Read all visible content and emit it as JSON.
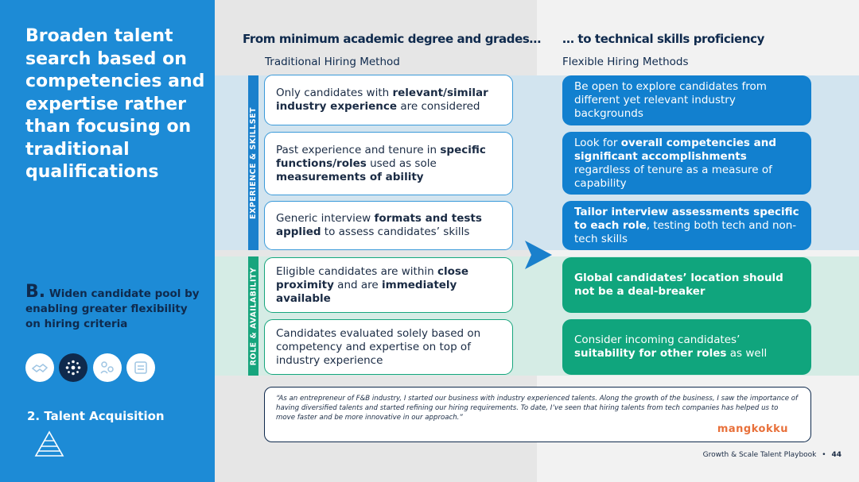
{
  "sidebar": {
    "title": "Broaden talent search based on competencies and expertise rather than focusing on traditional qualifications",
    "sub_letter": "B.",
    "sub_text": "Widen candidate pool by enabling greater flexibility on hiring criteria",
    "icons": [
      "handshake-icon",
      "network-icon",
      "people-icon",
      "document-icon"
    ],
    "section": "2. Talent Acquisition",
    "logo_icon": "pyramid-logo-icon"
  },
  "columns": {
    "left_heading": "From minimum academic degree and grades…",
    "left_sub": "Traditional Hiring Method",
    "right_heading": "… to technical skills proficiency",
    "right_sub": "Flexible Hiring Methods"
  },
  "bands": {
    "experience_label": "EXPERIENCE & SKILLSET",
    "role_label": "ROLE & AVAILABILITY"
  },
  "rows": [
    {
      "left": [
        {
          "t": "Only candidates with "
        },
        {
          "t": "relevant/similar industry experience",
          "b": true
        },
        {
          "t": " are considered"
        }
      ],
      "right": [
        {
          "t": "Be open to explore candidates from different yet relevant industry backgrounds"
        }
      ]
    },
    {
      "left": [
        {
          "t": "Past experience and tenure in "
        },
        {
          "t": "specific functions/roles",
          "b": true
        },
        {
          "t": " used as sole "
        },
        {
          "t": "measurements of ability",
          "b": true
        }
      ],
      "right": [
        {
          "t": "Look for "
        },
        {
          "t": "overall competencies and significant accomplishments",
          "b": true
        },
        {
          "t": " regardless of tenure as a measure of capability"
        }
      ]
    },
    {
      "left": [
        {
          "t": "Generic interview "
        },
        {
          "t": "formats and tests applied",
          "b": true
        },
        {
          "t": " to assess candidates’ skills"
        }
      ],
      "right": [
        {
          "t": "Tailor interview assessments specific to each role",
          "b": true
        },
        {
          "t": ", testing both tech and non-tech skills"
        }
      ]
    },
    {
      "left": [
        {
          "t": "Eligible candidates are within "
        },
        {
          "t": "close proximity",
          "b": true
        },
        {
          "t": " and are "
        },
        {
          "t": "immediately available",
          "b": true
        }
      ],
      "right": [
        {
          "t": "Global candidates’ location should not be a deal-breaker",
          "b": true
        }
      ]
    },
    {
      "left": [
        {
          "t": "Candidates evaluated solely based on competency and expertise on top of industry experience"
        }
      ],
      "right": [
        {
          "t": "Consider incoming candidates’ "
        },
        {
          "t": "suitability for other roles",
          "b": true
        },
        {
          "t": " as well"
        }
      ]
    }
  ],
  "quote": {
    "text": "“As an entrepreneur of F&B industry, I started our business with industry experienced talents. Along the growth of the business, I saw the importance of having diversified talents and started refining our hiring requirements. To date, I’ve seen that hiring talents from tech companies has helped us to move faster and be more innovative in our approach.”",
    "brand": "mangkokku"
  },
  "footer": {
    "text": "Growth & Scale Talent Playbook",
    "separator": "•",
    "page": "44"
  },
  "colors": {
    "sidebar": "#1d8bd6",
    "navy": "#0f2a4d",
    "blue_box": "#1280cf",
    "green_box": "#10a57d",
    "exp_label": "#1a80cc",
    "role_label": "#17a57d",
    "brand": "#e8703a"
  }
}
